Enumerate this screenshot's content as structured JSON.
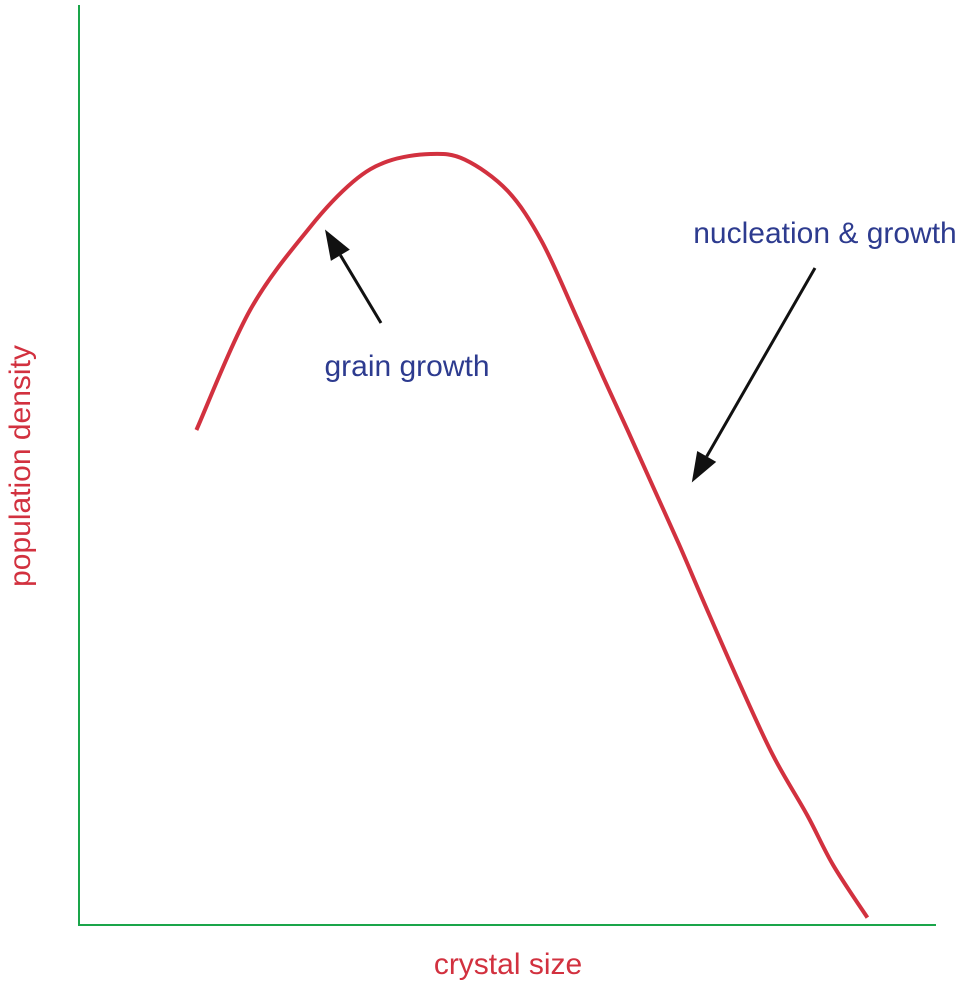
{
  "chart_data": {
    "type": "line",
    "title": "",
    "xlabel": "crystal size",
    "ylabel": "population density",
    "xlim": [
      0,
      100
    ],
    "ylim": [
      0,
      100
    ],
    "grid": false,
    "ticks": false,
    "series": [
      {
        "color": "#d2313f",
        "x": [
          13.7,
          20,
          27,
          32,
          36,
          41,
          45,
          50,
          54,
          58,
          61,
          64,
          67,
          70,
          73,
          77,
          81,
          85,
          88,
          92
        ],
        "y": [
          53.8,
          66.9,
          75.9,
          80.8,
          83.0,
          83.8,
          83.2,
          79.8,
          74.3,
          66.2,
          59.9,
          53.8,
          47.6,
          41.4,
          34.9,
          26.4,
          18.4,
          11.9,
          6.5,
          0.8
        ]
      }
    ],
    "annotations": [
      {
        "text": "grain growth",
        "color": "#2d3b8f",
        "arrow_to": {
          "x": 28.7,
          "y": 75.6
        }
      },
      {
        "text": "nucleation & growth",
        "color": "#2d3b8f",
        "arrow_to": {
          "x": 71.5,
          "y": 48.1
        }
      }
    ],
    "colors": {
      "curve": "#d2313f",
      "axis_lines": "#1aa54a",
      "axis_titles": "#d2313f",
      "annotation_text": "#2d3b8f",
      "arrows": "#111111"
    }
  }
}
